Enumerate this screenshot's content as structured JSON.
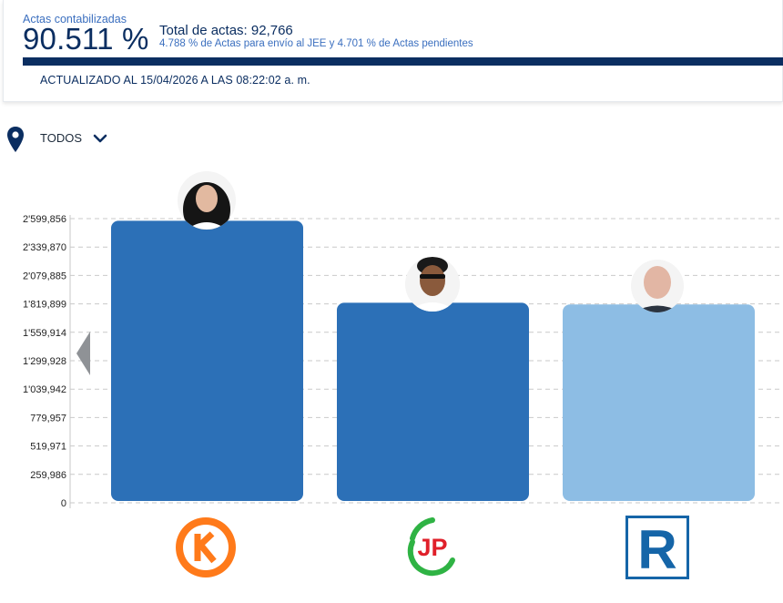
{
  "header": {
    "actas_label": "Actas contabilizadas",
    "actas_percent": "90.511 %",
    "total_actas": "Total de actas: 92,766",
    "actas_subtitle": "4.788 % de Actas para envío al JEE y 4.701 % de Actas pendientes",
    "updated": "ACTUALIZADO AL 15/04/2026 A LAS 08:22:02 a. m.",
    "progress_percent": 90.511
  },
  "filter": {
    "label": "TODOS",
    "location_icon": "map-pin-icon",
    "dropdown_icon": "chevron-down-icon"
  },
  "logos": [
    {
      "icon": "party-k-logo",
      "text": "K"
    },
    {
      "icon": "party-jp-logo",
      "text": "JP"
    },
    {
      "icon": "party-r-logo",
      "text": "R"
    }
  ],
  "chart_data": {
    "type": "bar",
    "categories": [
      "",
      "",
      ""
    ],
    "values": [
      2580000,
      1830000,
      1815000
    ],
    "ylim": [
      0,
      2599856
    ],
    "yticks": [
      0,
      259986,
      519971,
      779957,
      1039942,
      1299928,
      1559914,
      1819899,
      2079885,
      2339870,
      2599856
    ],
    "ytick_labels": [
      "0",
      "259,986",
      "519,971",
      "779,957",
      "1'039,942",
      "1'299,928",
      "1'559,914",
      "1'819,899",
      "2'079,885",
      "2'339,870",
      "2'599,856"
    ],
    "bar_colors": [
      "#2c70b7",
      "#2c70b7",
      "#8dbde4"
    ],
    "grid": true,
    "legend": "none"
  }
}
